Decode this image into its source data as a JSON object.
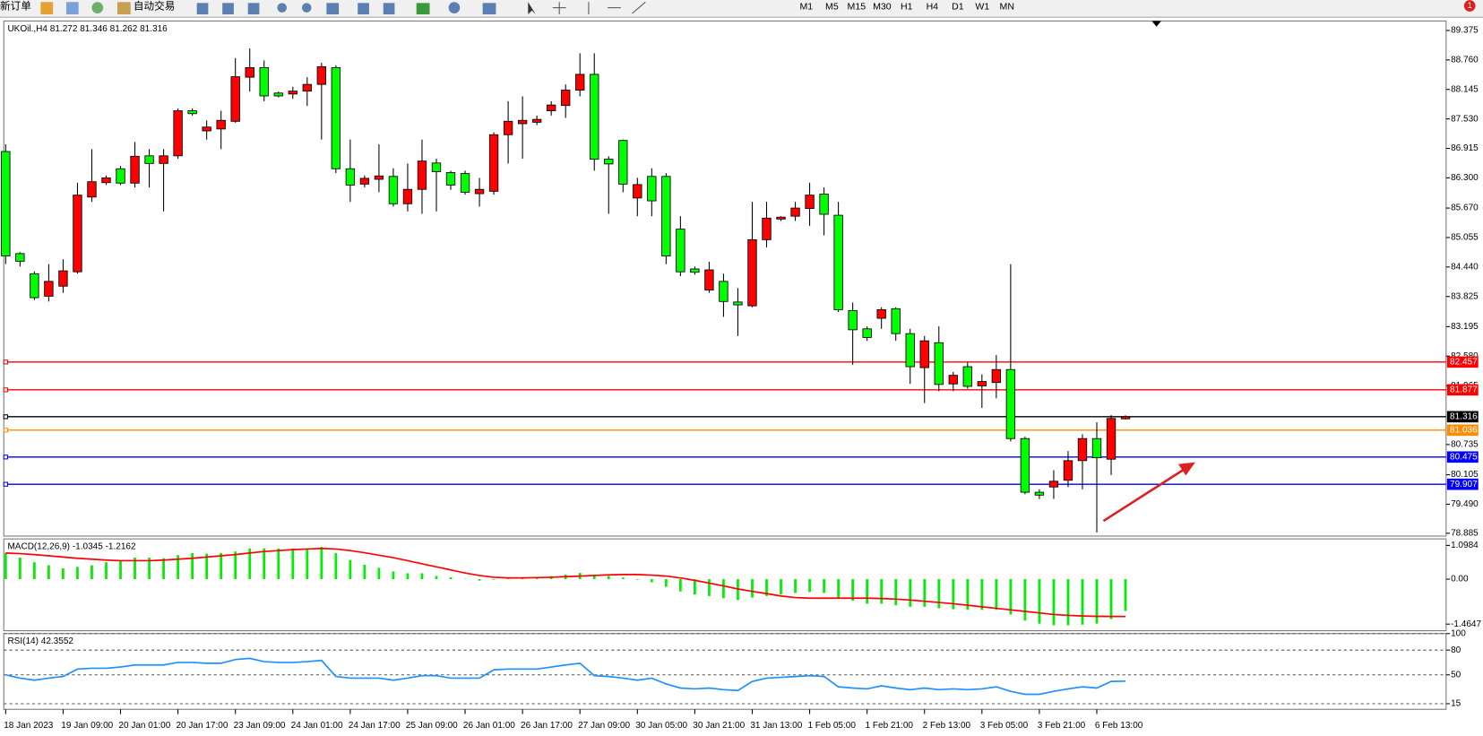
{
  "toolbar": {
    "new_order": "新订单",
    "auto_trading": "自动交易",
    "timeframes": [
      "M1",
      "M5",
      "M15",
      "M30",
      "H1",
      "H4",
      "D1",
      "W1",
      "MN"
    ],
    "notification_count": 1
  },
  "chart_data": [
    {
      "type": "candlestick",
      "label": "UKOil.,H4",
      "categories": [
        "18 Jan 2023",
        null,
        null,
        null,
        "19 Jan 09:00",
        null,
        null,
        null,
        "20 Jan 01:00",
        null,
        null,
        null,
        "20 Jan 17:00",
        null,
        null,
        null,
        "23 Jan 09:00",
        null,
        null,
        null,
        "24 Jan 01:00",
        null,
        null,
        null,
        "24 Jan 17:00",
        null,
        null,
        null,
        "25 Jan 09:00",
        null,
        null,
        null,
        "26 Jan 01:00",
        null,
        null,
        null,
        "26 Jan 17:00",
        null,
        null,
        null,
        "27 Jan 09:00",
        null,
        null,
        null,
        "30 Jan 05:00",
        null,
        null,
        null,
        "30 Jan 21:00",
        null,
        null,
        null,
        "31 Jan 13:00",
        null,
        null,
        null,
        "1 Feb 05:00",
        null,
        null,
        null,
        "1 Feb 21:00",
        null,
        null,
        null,
        "2 Feb 13:00",
        null,
        null,
        null,
        "3 Feb 05:00",
        null,
        null,
        null,
        "3 Feb 21:00",
        null,
        null,
        null,
        "6 Feb 13:00",
        null,
        null
      ],
      "ohlc": {
        "open": [
          86.85,
          84.72,
          84.3,
          83.83,
          84.04,
          84.34,
          85.9,
          86.2,
          86.49,
          86.19,
          86.76,
          86.6,
          86.76,
          87.7,
          87.28,
          87.32,
          87.48,
          88.4,
          88.6,
          88.07,
          88.05,
          88.11,
          88.25,
          88.6,
          86.49,
          86.17,
          86.27,
          86.33,
          85.76,
          86.06,
          86.61,
          86.41,
          86.39,
          85.97,
          86.02,
          87.2,
          87.43,
          87.46,
          87.7,
          87.81,
          88.13,
          88.46,
          86.69,
          87.08,
          85.88,
          86.33,
          86.33,
          85.23,
          84.4,
          83.96,
          84.14,
          83.71,
          83.63,
          85.01,
          85.44,
          85.5,
          85.66,
          85.96,
          85.52,
          83.53,
          83.15,
          83.37,
          83.57,
          83.05,
          82.34,
          82.86,
          82.0,
          82.36,
          81.96,
          82.03,
          82.3,
          80.86,
          79.74,
          79.85,
          79.99,
          80.4,
          80.86,
          80.43,
          81.272
        ],
        "high": [
          87.0,
          84.75,
          84.35,
          84.5,
          84.6,
          86.2,
          86.9,
          86.35,
          86.55,
          87.05,
          86.9,
          86.9,
          87.75,
          87.75,
          87.5,
          87.7,
          88.8,
          89.0,
          88.75,
          88.1,
          88.2,
          88.4,
          88.7,
          88.65,
          87.1,
          86.35,
          87.0,
          86.5,
          86.6,
          87.1,
          86.7,
          86.45,
          86.45,
          86.3,
          87.25,
          87.9,
          88.0,
          87.6,
          87.9,
          88.25,
          88.9,
          88.9,
          86.75,
          87.1,
          86.3,
          86.5,
          86.4,
          85.5,
          84.45,
          84.55,
          84.3,
          84.0,
          85.8,
          85.8,
          85.5,
          85.8,
          86.2,
          86.1,
          85.8,
          83.7,
          83.2,
          83.6,
          83.6,
          83.15,
          83.0,
          83.2,
          82.25,
          82.45,
          82.2,
          82.6,
          84.5,
          80.9,
          79.8,
          80.2,
          80.6,
          80.95,
          81.2,
          81.35,
          81.346
        ],
        "low": [
          84.5,
          84.45,
          83.75,
          83.72,
          83.9,
          84.3,
          85.8,
          86.15,
          86.15,
          86.1,
          86.1,
          85.6,
          86.7,
          87.6,
          87.1,
          86.9,
          87.45,
          88.1,
          87.9,
          87.98,
          87.95,
          87.8,
          87.1,
          86.4,
          85.8,
          86.1,
          86.0,
          85.7,
          85.6,
          85.55,
          85.6,
          86.05,
          85.95,
          85.7,
          85.95,
          86.6,
          86.7,
          87.4,
          87.6,
          87.55,
          88.0,
          86.45,
          85.55,
          86.0,
          85.5,
          85.5,
          84.5,
          84.25,
          84.28,
          83.9,
          83.4,
          83.0,
          83.6,
          84.85,
          85.4,
          85.4,
          85.3,
          85.1,
          83.5,
          82.4,
          82.9,
          83.15,
          82.9,
          82.0,
          81.6,
          81.85,
          81.85,
          81.9,
          81.5,
          81.7,
          80.8,
          79.7,
          79.6,
          79.6,
          79.85,
          79.8,
          78.9,
          80.1,
          81.262
        ],
        "close": [
          84.67,
          84.56,
          83.8,
          84.14,
          84.36,
          85.94,
          86.22,
          86.3,
          86.19,
          86.75,
          86.6,
          86.76,
          87.7,
          87.64,
          87.36,
          87.5,
          88.41,
          88.6,
          88.01,
          88.01,
          88.11,
          88.25,
          88.62,
          86.49,
          86.15,
          86.29,
          86.34,
          85.76,
          86.06,
          86.65,
          86.43,
          86.15,
          86.0,
          86.06,
          87.2,
          87.48,
          87.5,
          87.52,
          87.82,
          88.13,
          88.46,
          86.69,
          86.59,
          86.17,
          86.16,
          85.82,
          84.67,
          84.34,
          84.33,
          84.38,
          83.72,
          83.65,
          85.01,
          85.46,
          85.48,
          85.67,
          85.94,
          85.54,
          83.55,
          83.13,
          82.97,
          83.55,
          83.05,
          82.36,
          82.9,
          81.99,
          82.18,
          81.95,
          82.05,
          82.3,
          80.86,
          79.74,
          79.68,
          79.97,
          80.4,
          80.86,
          80.46,
          81.28,
          81.316
        ]
      },
      "up_color": "#ff0000",
      "down_color": "#00ff00",
      "ylim": [
        78.826,
        89.573
      ],
      "yticks": [
        89.375,
        {
          "value": 88.76,
          "label": "88.760"
        },
        88.145,
        {
          "value": 87.53,
          "label": "87.530"
        },
        86.915,
        {
          "value": 86.3,
          "label": "86.300"
        },
        {
          "value": 85.67,
          "label": "85.670"
        },
        85.055,
        {
          "value": 84.44,
          "label": "84.440"
        },
        83.825,
        83.195,
        {
          "value": 82.58,
          "label": "82.580"
        },
        81.965,
        80.735,
        80.105,
        {
          "value": 79.49,
          "label": "79.490"
        },
        78.885
      ],
      "grid": false,
      "hlines": [
        {
          "value": 82.457,
          "color": "#ff0000"
        },
        {
          "value": 81.877,
          "color": "#ff0000"
        },
        {
          "value": 81.316,
          "color": "#000000"
        },
        {
          "value": 81.036,
          "color": "#ff8c00"
        },
        {
          "value": 80.475,
          "color": "#0000ff"
        },
        {
          "value": 79.907,
          "color": "#0000ff"
        }
      ]
    },
    {
      "type": "macd",
      "label": "MACD(12,26,9)",
      "histogram": {
        "color": "#00ee00",
        "values": [
          0.85,
          0.7,
          0.55,
          0.45,
          0.35,
          0.4,
          0.45,
          0.55,
          0.62,
          0.7,
          0.7,
          0.68,
          0.78,
          0.85,
          0.83,
          0.85,
          0.9,
          1.0,
          1.0,
          1.0,
          1.0,
          1.0,
          1.05,
          0.85,
          0.62,
          0.47,
          0.37,
          0.25,
          0.19,
          0.19,
          0.1,
          0.06,
          0.01,
          -0.05,
          -0.02,
          0.02,
          0.03,
          0.06,
          0.1,
          0.15,
          0.2,
          0.15,
          0.1,
          0.05,
          -0.02,
          -0.1,
          -0.25,
          -0.4,
          -0.5,
          -0.55,
          -0.62,
          -0.68,
          -0.6,
          -0.55,
          -0.5,
          -0.45,
          -0.42,
          -0.45,
          -0.6,
          -0.7,
          -0.8,
          -0.8,
          -0.85,
          -0.9,
          -0.9,
          -0.95,
          -0.98,
          -1.0,
          -1.0,
          -1.0,
          -1.15,
          -1.35,
          -1.45,
          -1.5,
          -1.5,
          -1.48,
          -1.45,
          -1.3,
          -1.0345
        ]
      },
      "signal": {
        "color": "#ff0000",
        "values": [
          0.85,
          0.83,
          0.8,
          0.76,
          0.72,
          0.68,
          0.65,
          0.62,
          0.6,
          0.6,
          0.6,
          0.62,
          0.65,
          0.68,
          0.72,
          0.76,
          0.8,
          0.85,
          0.9,
          0.93,
          0.96,
          0.98,
          1.0,
          0.98,
          0.93,
          0.86,
          0.78,
          0.7,
          0.6,
          0.5,
          0.4,
          0.3,
          0.2,
          0.12,
          0.06,
          0.04,
          0.04,
          0.05,
          0.06,
          0.08,
          0.1,
          0.12,
          0.14,
          0.15,
          0.15,
          0.13,
          0.1,
          0.04,
          -0.04,
          -0.13,
          -0.22,
          -0.32,
          -0.4,
          -0.47,
          -0.55,
          -0.6,
          -0.62,
          -0.62,
          -0.62,
          -0.62,
          -0.62,
          -0.63,
          -0.65,
          -0.68,
          -0.72,
          -0.76,
          -0.8,
          -0.85,
          -0.9,
          -0.95,
          -1.0,
          -1.05,
          -1.1,
          -1.15,
          -1.18,
          -1.2,
          -1.21,
          -1.215,
          -1.2162
        ]
      },
      "ylim": [
        -1.68,
        1.31
      ],
      "yticks": [
        1.0984,
        {
          "value": 0,
          "label": "0.00"
        },
        -1.4647
      ]
    },
    {
      "type": "rsi",
      "label": "RSI(14)",
      "color": "#1e90ff",
      "values": [
        50,
        46,
        43.5,
        46,
        48,
        57,
        58,
        58,
        59.5,
        62,
        62,
        62,
        65,
        65,
        64,
        64,
        68.6,
        70,
        66,
        65,
        65,
        66,
        67.5,
        48,
        46,
        46,
        46,
        43.5,
        46,
        49,
        49,
        46,
        46,
        46,
        56,
        57,
        57,
        57,
        59.5,
        62,
        64,
        49,
        48,
        46,
        43.5,
        46,
        39,
        34,
        33,
        34,
        32,
        31,
        42,
        46,
        47,
        48,
        49,
        48,
        35.5,
        34,
        33,
        36.7,
        34,
        32,
        34,
        32,
        33,
        32,
        33,
        35.5,
        30,
        26.4,
        26.4,
        30,
        33,
        35.5,
        34,
        42,
        42.3552
      ],
      "ylim": [
        8.2,
        100
      ],
      "yticks": [
        100,
        80,
        50,
        15
      ],
      "levels_dashed": true
    }
  ]
}
